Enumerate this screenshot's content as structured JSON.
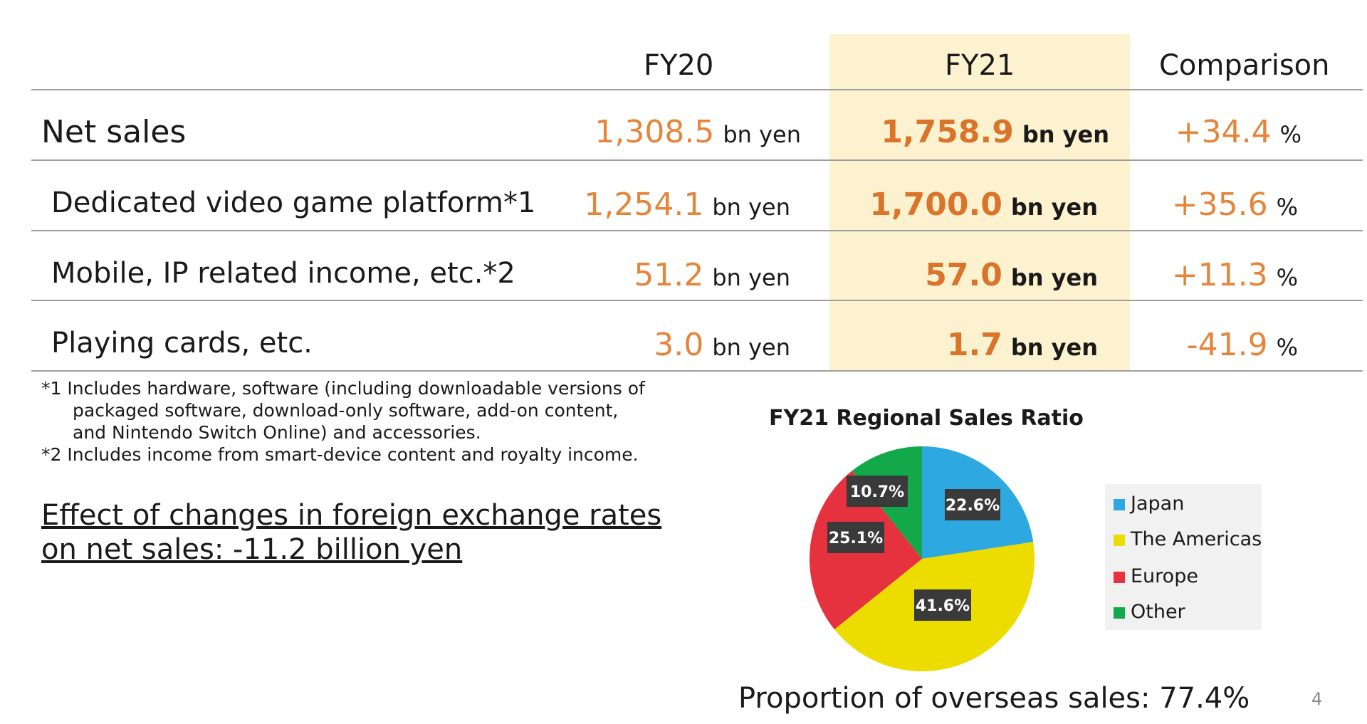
{
  "columns": {
    "fy20": "FY20",
    "fy21": "FY21",
    "comparison": "Comparison"
  },
  "units": {
    "bn_yen": "bn yen",
    "percent": "%"
  },
  "rows": [
    {
      "label": "Net sales",
      "fy20": "1,308.5",
      "fy21": "1,758.9",
      "comparison": "+34.4"
    },
    {
      "label": "Dedicated video game platform*1",
      "fy20": "1,254.1",
      "fy21": "1,700.0",
      "comparison": "+35.6"
    },
    {
      "label": "Mobile, IP related income, etc.*2",
      "fy20": "51.2",
      "fy21": "57.0",
      "comparison": "+11.3"
    },
    {
      "label": "Playing cards, etc.",
      "fy20": "3.0",
      "fy21": "1.7",
      "comparison": "-41.9"
    }
  ],
  "footnotes": {
    "note1_line1": "*1 Includes hardware, software (including downloadable versions of",
    "note1_line2": "packaged software, download-only software, add-on content,",
    "note1_line3": "and Nintendo Switch Online) and accessories.",
    "note2": "*2 Includes income from smart-device content and royalty income."
  },
  "fx_effect": {
    "line1": "Effect of changes in foreign exchange rates",
    "line2": "on net sales: -11.2 billion yen"
  },
  "overseas_proportion": "Proportion of overseas sales: 77.4%",
  "page_number": "4",
  "colors": {
    "highlight": "#fdf2cf",
    "value_orange": "#e5853b",
    "japan": "#2ea8e0",
    "americas": "#ecdc00",
    "europe": "#e5323e",
    "other": "#13a84a"
  },
  "chart_data": {
    "type": "pie",
    "title": "FY21 Regional Sales Ratio",
    "categories": [
      "Japan",
      "The Americas",
      "Europe",
      "Other"
    ],
    "values": [
      22.6,
      41.6,
      25.1,
      10.7
    ],
    "labels": [
      "22.6%",
      "41.6%",
      "25.1%",
      "10.7%"
    ],
    "legend_position": "right"
  }
}
